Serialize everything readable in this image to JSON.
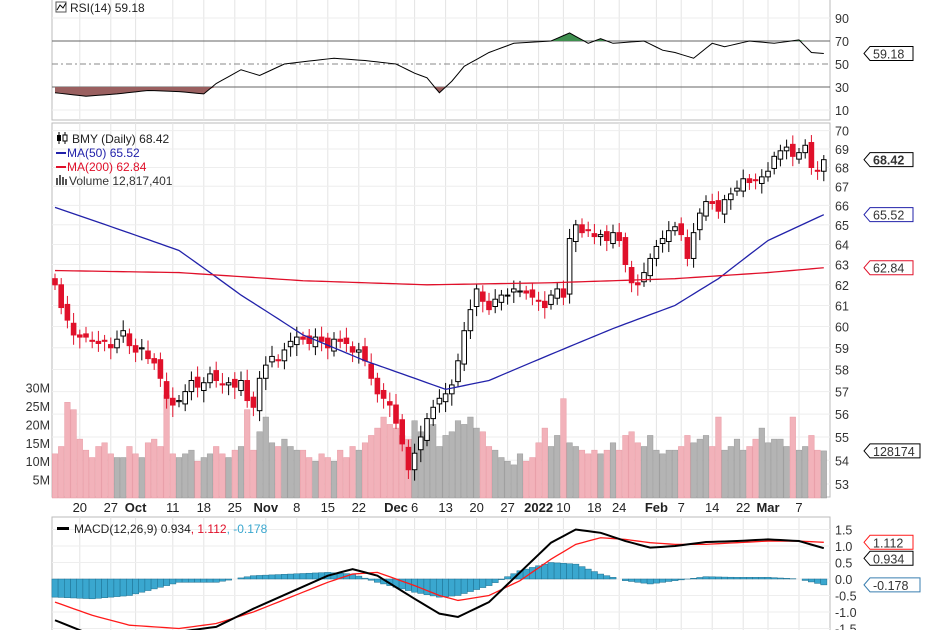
{
  "chart_data": [
    {
      "type": "line",
      "panel": "rsi",
      "title": "RSI(14)",
      "current": "59.18",
      "yticks": [
        "90",
        "70",
        "50",
        "30",
        "10"
      ],
      "ylim": [
        0,
        100
      ],
      "overbought": 70,
      "oversold": 30,
      "points": [
        [
          0,
          25
        ],
        [
          5,
          22
        ],
        [
          10,
          24
        ],
        [
          15,
          27
        ],
        [
          20,
          26
        ],
        [
          24,
          24
        ],
        [
          26,
          33
        ],
        [
          30,
          45
        ],
        [
          33,
          40
        ],
        [
          37,
          50
        ],
        [
          40,
          52
        ],
        [
          45,
          55
        ],
        [
          50,
          53
        ],
        [
          55,
          50
        ],
        [
          58,
          42
        ],
        [
          60,
          38
        ],
        [
          62,
          25
        ],
        [
          64,
          35
        ],
        [
          66,
          48
        ],
        [
          70,
          60
        ],
        [
          74,
          68
        ],
        [
          80,
          70
        ],
        [
          83,
          77
        ],
        [
          86,
          68
        ],
        [
          88,
          72
        ],
        [
          90,
          68
        ],
        [
          95,
          70
        ],
        [
          98,
          62
        ],
        [
          100,
          60
        ],
        [
          103,
          55
        ],
        [
          106,
          68
        ],
        [
          108,
          65
        ],
        [
          112,
          70
        ],
        [
          116,
          68
        ],
        [
          120,
          71
        ],
        [
          122,
          60
        ],
        [
          124,
          59.18
        ]
      ]
    },
    {
      "type": "candlestick",
      "panel": "price",
      "title": "BMY (Daily)",
      "current": "68.42",
      "ma50_label": "MA(50)",
      "ma50_value": "65.52",
      "ma200_label": "MA(200)",
      "ma200_value": "62.84",
      "volume_label": "Volume",
      "volume_value": "12,817,401",
      "volume_last_tag": "128174",
      "yticks": [
        "70",
        "69",
        "68",
        "67",
        "66",
        "65",
        "64",
        "63",
        "62",
        "61",
        "60",
        "59",
        "58",
        "57",
        "56",
        "55",
        "54",
        "53"
      ],
      "ylim": [
        53,
        70
      ],
      "yscale": "log",
      "vol_ticks": [
        "30M",
        "25M",
        "20M",
        "15M",
        "10M",
        "5M"
      ],
      "closes": [
        62.0,
        60.9,
        60.3,
        59.6,
        59.5,
        59.5,
        59.3,
        59.2,
        59.3,
        59.0,
        59.4,
        59.8,
        59.1,
        58.8,
        59.0,
        58.5,
        58.3,
        57.6,
        56.7,
        56.4,
        56.6,
        57.0,
        57.5,
        57.2,
        57.4,
        57.8,
        57.5,
        57.3,
        57.4,
        57.2,
        57.5,
        56.6,
        56.3,
        57.6,
        58.2,
        58.6,
        58.4,
        58.9,
        59.3,
        59.5,
        59.4,
        59.2,
        59.5,
        59.3,
        59.0,
        59.4,
        59.3,
        59.2,
        58.8,
        58.9,
        58.4,
        57.6,
        56.9,
        56.7,
        56.4,
        55.6,
        54.7,
        53.6,
        54.3,
        55.0,
        55.8,
        56.3,
        56.7,
        56.9,
        57.3,
        58.4,
        59.8,
        60.8,
        61.8,
        61.2,
        60.8,
        61.3,
        61.5,
        61.5,
        61.8,
        61.7,
        61.6,
        61.4,
        61.2,
        60.9,
        61.5,
        61.8,
        61.4,
        64.3,
        65.0,
        64.6,
        64.7,
        64.4,
        64.5,
        64.2,
        64.6,
        64.2,
        63.0,
        62.1,
        62.0,
        62.6,
        63.3,
        63.9,
        64.3,
        64.7,
        64.9,
        64.5,
        63.3,
        64.6,
        65.6,
        66.2,
        66.1,
        65.7,
        66.3,
        66.6,
        66.9,
        67.4,
        67.2,
        67.3,
        67.5,
        67.8,
        68.6,
        68.9,
        69.1,
        68.6,
        68.8,
        69.2,
        68.0,
        67.8,
        68.42
      ],
      "volumes_m": [
        12,
        14,
        26,
        24,
        16,
        13,
        11,
        14,
        15,
        12,
        11,
        11,
        14,
        12,
        11,
        15,
        16,
        14,
        28,
        12,
        11,
        12,
        13,
        10,
        11,
        12,
        14,
        12,
        11,
        13,
        14,
        24,
        13,
        18,
        22,
        15,
        14,
        16,
        14,
        13,
        13,
        11,
        10,
        12,
        11,
        10,
        13,
        11,
        14,
        13,
        15,
        17,
        19,
        22,
        20,
        19,
        17,
        16,
        21,
        18,
        17,
        20,
        14,
        17,
        18,
        21,
        20,
        22,
        19,
        18,
        14,
        13,
        11,
        10,
        9,
        12,
        10,
        11,
        15,
        19,
        14,
        17,
        27,
        15,
        14,
        13,
        12,
        13,
        12,
        13,
        15,
        13,
        17,
        18,
        15,
        14,
        17,
        13,
        12,
        13,
        13,
        14,
        17,
        15,
        16,
        17,
        14,
        22,
        13,
        14,
        16,
        13,
        14,
        16,
        19,
        15,
        16,
        16,
        14,
        22,
        13,
        14,
        17,
        13,
        12.8
      ],
      "ma50": [
        [
          0,
          65.9
        ],
        [
          10,
          64.8
        ],
        [
          20,
          63.7
        ],
        [
          30,
          61.5
        ],
        [
          40,
          59.6
        ],
        [
          50,
          58.4
        ],
        [
          58,
          57.6
        ],
        [
          63,
          57.1
        ],
        [
          70,
          57.5
        ],
        [
          80,
          58.7
        ],
        [
          90,
          59.9
        ],
        [
          100,
          61.0
        ],
        [
          107,
          62.3
        ],
        [
          115,
          64.2
        ],
        [
          124,
          65.52
        ]
      ],
      "ma200": [
        [
          0,
          62.7
        ],
        [
          20,
          62.6
        ],
        [
          40,
          62.2
        ],
        [
          60,
          62.0
        ],
        [
          80,
          62.1
        ],
        [
          100,
          62.3
        ],
        [
          115,
          62.6
        ],
        [
          124,
          62.84
        ]
      ],
      "xticks": [
        [
          4,
          "20",
          false
        ],
        [
          9,
          "27",
          false
        ],
        [
          13,
          "Oct",
          true
        ],
        [
          19,
          "11",
          false
        ],
        [
          24,
          "18",
          false
        ],
        [
          29,
          "25",
          false
        ],
        [
          34,
          "Nov",
          true
        ],
        [
          39,
          "8",
          false
        ],
        [
          44,
          "15",
          false
        ],
        [
          49,
          "22",
          false
        ],
        [
          55,
          "Dec",
          true
        ],
        [
          58,
          "6",
          false
        ],
        [
          63,
          "13",
          false
        ],
        [
          68,
          "20",
          false
        ],
        [
          73,
          "27",
          false
        ],
        [
          78,
          "2022",
          true
        ],
        [
          82,
          "10",
          false
        ],
        [
          87,
          "18",
          false
        ],
        [
          91,
          "24",
          false
        ],
        [
          97,
          "Feb",
          true
        ],
        [
          101,
          "7",
          false
        ],
        [
          106,
          "14",
          false
        ],
        [
          111,
          "22",
          false
        ],
        [
          115,
          "Mar",
          true
        ],
        [
          120,
          "7",
          false
        ]
      ]
    },
    {
      "type": "line",
      "panel": "macd",
      "title": "MACD(12,26,9)",
      "macd_value": "0.934",
      "signal_value": "1.112",
      "hist_value": "-0.178",
      "signal_tag": "1.112",
      "yticks": [
        "1.5",
        "1.0",
        "0.5",
        "0.0",
        "-0.5",
        "-1.0",
        "-1.5"
      ],
      "ylim": [
        -1.6,
        1.6
      ],
      "macd": [
        [
          0,
          -1.25
        ],
        [
          6,
          -1.7
        ],
        [
          12,
          -1.9
        ],
        [
          20,
          -1.6
        ],
        [
          26,
          -1.45
        ],
        [
          32,
          -0.9
        ],
        [
          38,
          -0.4
        ],
        [
          44,
          0.1
        ],
        [
          48,
          0.3
        ],
        [
          52,
          0.1
        ],
        [
          58,
          -0.6
        ],
        [
          62,
          -1.05
        ],
        [
          65,
          -1.15
        ],
        [
          70,
          -0.7
        ],
        [
          75,
          0.2
        ],
        [
          80,
          1.1
        ],
        [
          84,
          1.5
        ],
        [
          88,
          1.4
        ],
        [
          92,
          1.15
        ],
        [
          96,
          0.95
        ],
        [
          100,
          1.0
        ],
        [
          105,
          1.12
        ],
        [
          110,
          1.15
        ],
        [
          115,
          1.2
        ],
        [
          120,
          1.15
        ],
        [
          124,
          0.934
        ]
      ],
      "signal": [
        [
          0,
          -0.7
        ],
        [
          6,
          -1.1
        ],
        [
          12,
          -1.4
        ],
        [
          20,
          -1.5
        ],
        [
          26,
          -1.35
        ],
        [
          32,
          -1.0
        ],
        [
          38,
          -0.55
        ],
        [
          44,
          -0.1
        ],
        [
          48,
          0.15
        ],
        [
          52,
          0.2
        ],
        [
          58,
          -0.2
        ],
        [
          62,
          -0.5
        ],
        [
          65,
          -0.65
        ],
        [
          70,
          -0.5
        ],
        [
          75,
          -0.05
        ],
        [
          80,
          0.6
        ],
        [
          84,
          1.05
        ],
        [
          88,
          1.25
        ],
        [
          92,
          1.2
        ],
        [
          96,
          1.1
        ],
        [
          100,
          1.05
        ],
        [
          105,
          1.05
        ],
        [
          110,
          1.1
        ],
        [
          115,
          1.15
        ],
        [
          120,
          1.15
        ],
        [
          124,
          1.112
        ]
      ]
    }
  ],
  "colors": {
    "up": "#000000",
    "down": "#e0102a",
    "ma50": "#2222aa",
    "ma200": "#e0102a",
    "vol_up": "#b4b4b4",
    "vol_down": "#f2b2ba",
    "macd": "#000000",
    "signal": "#ff1a1a",
    "hist": "#3aa7cf",
    "rsi_ob": "#3f8f4f",
    "rsi_os": "#9a6060"
  }
}
